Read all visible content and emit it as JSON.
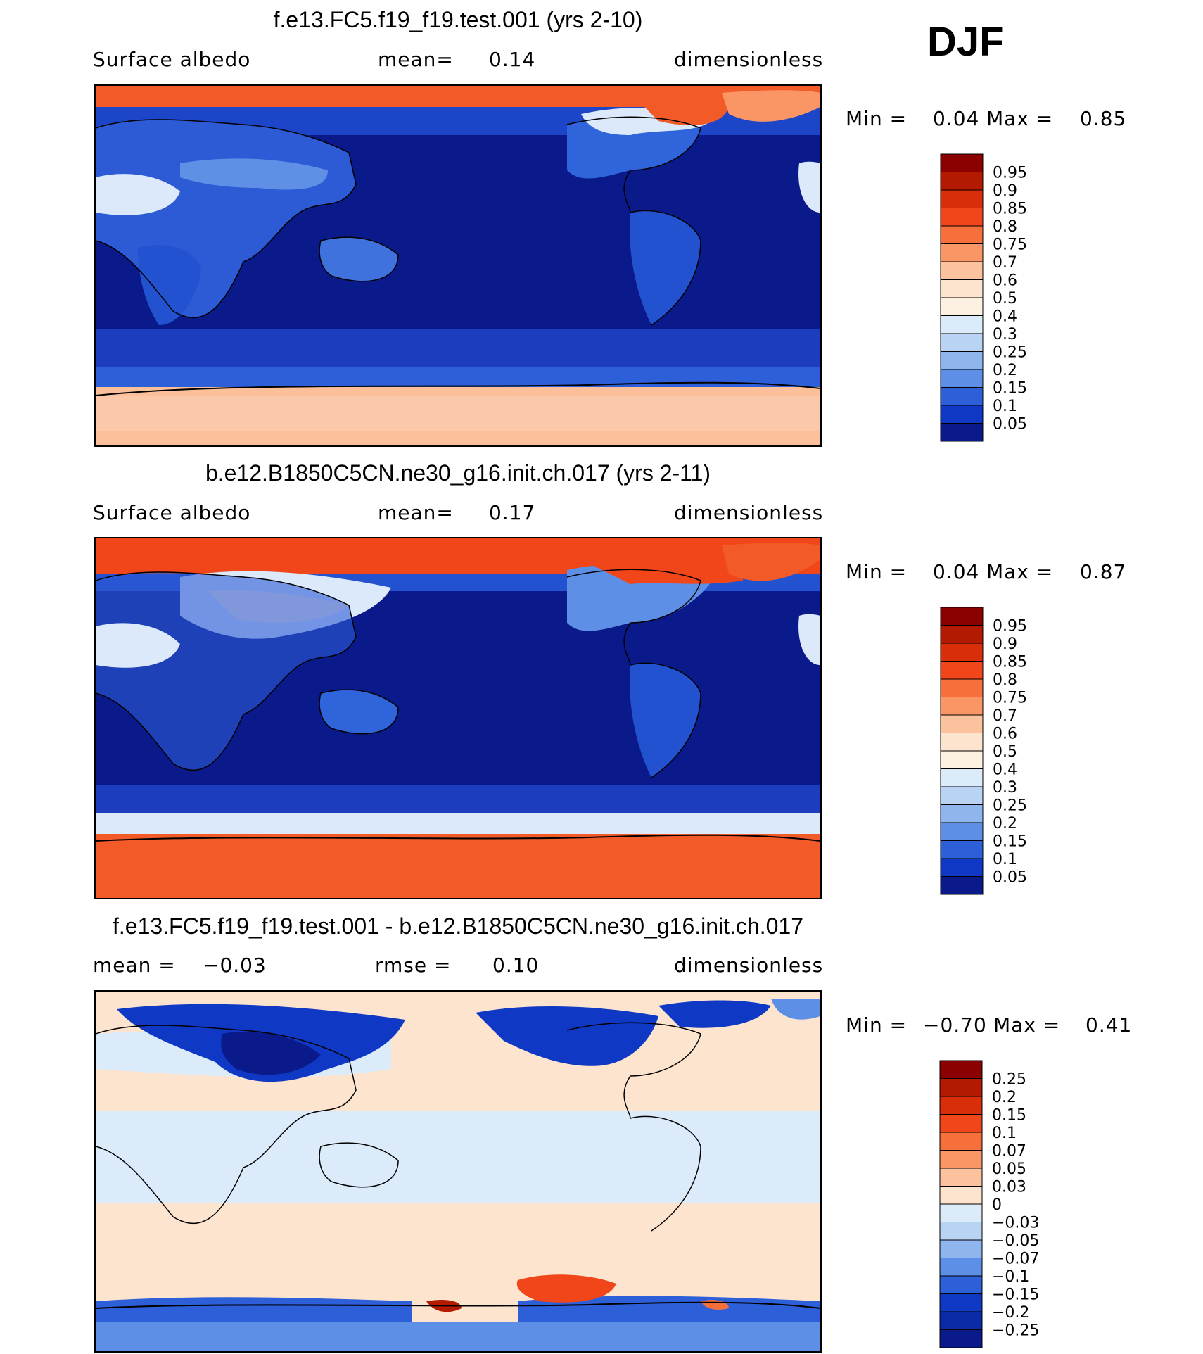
{
  "season": "DJF",
  "panels": [
    {
      "title": "f.e13.FC5.f19_f19.test.001 (yrs 2-10)",
      "left_label": "Surface albedo",
      "mean_label": "mean=",
      "mean_value": "0.14",
      "units": "dimensionless",
      "min_label": "Min =",
      "min_value": "0.04",
      "max_label": "Max =",
      "max_value": "0.85"
    },
    {
      "title": "b.e12.B1850C5CN.ne30_g16.init.ch.017 (yrs 2-11)",
      "left_label": "Surface albedo",
      "mean_label": "mean=",
      "mean_value": "0.17",
      "units": "dimensionless",
      "min_label": "Min =",
      "min_value": "0.04",
      "max_label": "Max =",
      "max_value": "0.87"
    },
    {
      "title": "f.e13.FC5.f19_f19.test.001 - b.e12.B1850C5CN.ne30_g16.init.ch.017",
      "left_label": "mean =",
      "left_value": "−0.03",
      "mean_label": "rmse =",
      "mean_value": "0.10",
      "units": "dimensionless",
      "min_label": "Min =",
      "min_value": "−0.70",
      "max_label": "Max =",
      "max_value": "0.41"
    }
  ],
  "chart_data": [
    {
      "type": "heatmap",
      "title": "f.e13.FC5.f19_f19.test.001 (yrs 2-10)",
      "variable": "Surface albedo",
      "units": "dimensionless",
      "mean": 0.14,
      "min": 0.04,
      "max": 0.85,
      "colorbar_levels": [
        "0.95",
        "0.9",
        "0.85",
        "0.8",
        "0.75",
        "0.7",
        "0.6",
        "0.5",
        "0.4",
        "0.3",
        "0.25",
        "0.2",
        "0.15",
        "0.1",
        "0.05"
      ],
      "colorbar_colors": [
        "#8b0000",
        "#b31a00",
        "#d92e0a",
        "#f0461a",
        "#f7703c",
        "#fa9666",
        "#fcc29e",
        "#fde4cf",
        "#fdf1e4",
        "#dcebf9",
        "#b9d3f5",
        "#8fb5ee",
        "#5e8fe6",
        "#2c5fd8",
        "#0f38c4",
        "#0a1a8a"
      ]
    },
    {
      "type": "heatmap",
      "title": "b.e12.B1850C5CN.ne30_g16.init.ch.017 (yrs 2-11)",
      "variable": "Surface albedo",
      "units": "dimensionless",
      "mean": 0.17,
      "min": 0.04,
      "max": 0.87,
      "colorbar_levels": [
        "0.95",
        "0.9",
        "0.85",
        "0.8",
        "0.75",
        "0.7",
        "0.6",
        "0.5",
        "0.4",
        "0.3",
        "0.25",
        "0.2",
        "0.15",
        "0.1",
        "0.05"
      ],
      "colorbar_colors": [
        "#8b0000",
        "#b31a00",
        "#d92e0a",
        "#f0461a",
        "#f7703c",
        "#fa9666",
        "#fcc29e",
        "#fde4cf",
        "#fdf1e4",
        "#dcebf9",
        "#b9d3f5",
        "#8fb5ee",
        "#5e8fe6",
        "#2c5fd8",
        "#0f38c4",
        "#0a1a8a"
      ]
    },
    {
      "type": "heatmap",
      "title": "f.e13.FC5.f19_f19.test.001 - b.e12.B1850C5CN.ne30_g16.init.ch.017",
      "units": "dimensionless",
      "mean": -0.03,
      "rmse": 0.1,
      "min": -0.7,
      "max": 0.41,
      "colorbar_levels": [
        "0.25",
        "0.2",
        "0.15",
        "0.1",
        "0.07",
        "0.05",
        "0.03",
        "0",
        "−0.03",
        "−0.05",
        "−0.07",
        "−0.1",
        "−0.15",
        "−0.2",
        "−0.25"
      ],
      "colorbar_colors": [
        "#8b0000",
        "#b31a00",
        "#d92e0a",
        "#f0461a",
        "#f7703c",
        "#fa9666",
        "#fcc29e",
        "#fde4cf",
        "#dcebf9",
        "#b9d3f5",
        "#8fb5ee",
        "#5e8fe6",
        "#2c5fd8",
        "#0f38c4",
        "#0a2aa8",
        "#0a1a8a"
      ]
    }
  ]
}
